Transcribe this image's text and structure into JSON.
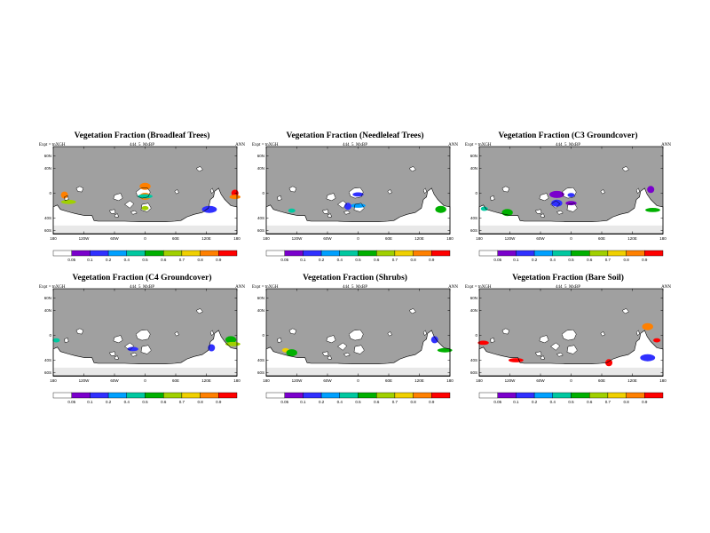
{
  "page": {
    "panels": [
      {
        "title": "Vegetation Fraction (Broadleaf Trees)",
        "expt_label": "Expt = tnXGH",
        "run_label": "444_5_MxBP",
        "season": "ANN"
      },
      {
        "title": "Vegetation Fraction (Needleleaf Trees)",
        "expt_label": "Expt = tnXGH",
        "run_label": "444_5_MxBP",
        "season": "ANN"
      },
      {
        "title": "Vegetation Fraction (C3 Groundcover)",
        "expt_label": "Expt = tnXGH",
        "run_label": "444_5_MxBP",
        "season": "ANN"
      },
      {
        "title": "Vegetation Fraction (C4 Groundcover)",
        "expt_label": "Expt = tnXGH",
        "run_label": "444_5_MxBP",
        "season": "ANN"
      },
      {
        "title": "Vegetation Fraction (Shrubs)",
        "expt_label": "Expt = tnXGH",
        "run_label": "444_5_MxBP",
        "season": "ANN"
      },
      {
        "title": "Vegetation Fraction (Bare Soil)",
        "expt_label": "Expt = tnXGH",
        "run_label": "444_5_MxBP",
        "season": "ANN"
      }
    ]
  },
  "chart_data": [
    {
      "type": "heatmap",
      "title": "Vegetation Fraction (Broadleaf Trees)",
      "x_tick_labels": [
        "180",
        "120W",
        "60W",
        "0",
        "60E",
        "120E",
        "180"
      ],
      "y_tick_labels": [
        "60N",
        "40N",
        "0",
        "40S",
        "60S"
      ],
      "colorbar_labels": [
        "0.05",
        "0.1",
        "0.2",
        "0.4",
        "0.5",
        "0.6",
        "0.7",
        "0.8",
        "0.9"
      ],
      "colorbar_colors": [
        "#ffffff",
        "#7a00cc",
        "#3030ff",
        "#00a0ff",
        "#00c8a0",
        "#00b000",
        "#a0d000",
        "#f0d000",
        "#ff8000",
        "#ff0000"
      ],
      "blobs": [
        {
          "lon": 0,
          "lat": -5,
          "level": 9
        },
        {
          "lon": 0,
          "lat": -5,
          "level": 8
        },
        {
          "lon": 0,
          "lat": -5,
          "level": 4
        },
        {
          "lon": 176,
          "lat": 0,
          "level": 9
        },
        {
          "lon": 176,
          "lat": -6,
          "level": 8
        },
        {
          "lon": 126,
          "lat": -26,
          "level": 2
        },
        {
          "lon": 0,
          "lat": -24,
          "level": 6
        },
        {
          "lon": 0,
          "lat": 11,
          "level": 8
        },
        {
          "lon": -150,
          "lat": -14,
          "level": 6
        },
        {
          "lon": -158,
          "lat": -3,
          "level": 8
        }
      ],
      "blob_values": [
        0.9,
        0.8,
        0.5,
        0.9,
        0.8,
        0.2,
        0.6,
        0.8,
        0.6,
        0.8
      ]
    },
    {
      "type": "heatmap",
      "title": "Vegetation Fraction (Needleleaf Trees)",
      "x_tick_labels": [
        "180",
        "120W",
        "60W",
        "0",
        "60E",
        "120E",
        "180"
      ],
      "y_tick_labels": [
        "60N",
        "40N",
        "0",
        "40S",
        "60S"
      ],
      "colorbar_labels": [
        "0.05",
        "0.1",
        "0.2",
        "0.4",
        "0.5",
        "0.6",
        "0.7",
        "0.8",
        "0.9"
      ],
      "colorbar_colors": [
        "#ffffff",
        "#7a00cc",
        "#3030ff",
        "#00a0ff",
        "#00c8a0",
        "#00b000",
        "#a0d000",
        "#f0d000",
        "#ff8000",
        "#ff0000"
      ],
      "blobs": [
        {
          "lon": -130,
          "lat": -28,
          "level": 4
        },
        {
          "lon": 162,
          "lat": -26,
          "level": 5
        },
        {
          "lon": 0,
          "lat": -20,
          "level": 3
        },
        {
          "lon": -20,
          "lat": -21,
          "level": 2
        },
        {
          "lon": 0,
          "lat": -2,
          "level": 2
        }
      ],
      "blob_values": [
        0.4,
        0.5,
        0.4,
        0.2,
        0.2
      ]
    },
    {
      "type": "heatmap",
      "title": "Vegetation Fraction (C3 Groundcover)",
      "x_tick_labels": [
        "180",
        "120W",
        "60W",
        "0",
        "60E",
        "120E",
        "180"
      ],
      "y_tick_labels": [
        "60N",
        "40N",
        "0",
        "40S",
        "60S"
      ],
      "colorbar_labels": [
        "0.05",
        "0.1",
        "0.2",
        "0.4",
        "0.5",
        "0.6",
        "0.7",
        "0.8",
        "0.9"
      ],
      "colorbar_colors": [
        "#ffffff",
        "#7a00cc",
        "#3030ff",
        "#00a0ff",
        "#00c8a0",
        "#00b000",
        "#a0d000",
        "#f0d000",
        "#ff8000",
        "#ff0000"
      ],
      "blobs": [
        {
          "lon": -170,
          "lat": -25,
          "level": 4
        },
        {
          "lon": -125,
          "lat": -31,
          "level": 5
        },
        {
          "lon": 160,
          "lat": -27,
          "level": 5
        },
        {
          "lon": 156,
          "lat": 6,
          "level": 1
        },
        {
          "lon": 0,
          "lat": -16,
          "level": 1
        },
        {
          "lon": -28,
          "lat": -2,
          "level": 1
        },
        {
          "lon": 0,
          "lat": -3,
          "level": 2
        },
        {
          "lon": -28,
          "lat": -16,
          "level": 2
        }
      ],
      "blob_values": [
        0.4,
        0.5,
        0.5,
        0.1,
        0.1,
        0.1,
        0.2,
        0.2
      ]
    },
    {
      "type": "heatmap",
      "title": "Vegetation Fraction (C4 Groundcover)",
      "x_tick_labels": [
        "180",
        "120W",
        "60W",
        "0",
        "60E",
        "120E",
        "180"
      ],
      "y_tick_labels": [
        "60N",
        "40N",
        "0",
        "40S",
        "60S"
      ],
      "colorbar_labels": [
        "0.05",
        "0.1",
        "0.2",
        "0.4",
        "0.5",
        "0.6",
        "0.7",
        "0.8",
        "0.9"
      ],
      "colorbar_colors": [
        "#ffffff",
        "#7a00cc",
        "#3030ff",
        "#00a0ff",
        "#00c8a0",
        "#00b000",
        "#a0d000",
        "#f0d000",
        "#ff8000",
        "#ff0000"
      ],
      "blobs": [
        {
          "lon": -174,
          "lat": -8,
          "level": 4
        },
        {
          "lon": 168,
          "lat": -7,
          "level": 5
        },
        {
          "lon": 172,
          "lat": -14,
          "level": 6
        },
        {
          "lon": 130,
          "lat": -20,
          "level": 2
        },
        {
          "lon": -24,
          "lat": -22,
          "level": 2
        }
      ],
      "blob_values": [
        0.4,
        0.5,
        0.6,
        0.2,
        0.2
      ]
    },
    {
      "type": "heatmap",
      "title": "Vegetation Fraction (Shrubs)",
      "x_tick_labels": [
        "180",
        "120W",
        "60W",
        "0",
        "60E",
        "120E",
        "180"
      ],
      "y_tick_labels": [
        "60N",
        "40N",
        "0",
        "40S",
        "60S"
      ],
      "colorbar_labels": [
        "0.05",
        "0.1",
        "0.2",
        "0.4",
        "0.5",
        "0.6",
        "0.7",
        "0.8",
        "0.9"
      ],
      "colorbar_colors": [
        "#ffffff",
        "#7a00cc",
        "#3030ff",
        "#00a0ff",
        "#00c8a0",
        "#00b000",
        "#a0d000",
        "#f0d000",
        "#ff8000",
        "#ff0000"
      ],
      "blobs": [
        {
          "lon": -142,
          "lat": -24,
          "level": 7
        },
        {
          "lon": -130,
          "lat": -28,
          "level": 5
        },
        {
          "lon": 170,
          "lat": -24,
          "level": 5
        },
        {
          "lon": 150,
          "lat": -7,
          "level": 2
        }
      ],
      "blob_values": [
        0.7,
        0.5,
        0.5,
        0.2
      ]
    },
    {
      "type": "heatmap",
      "title": "Vegetation Fraction (Bare Soil)",
      "x_tick_labels": [
        "180",
        "120W",
        "60W",
        "0",
        "60E",
        "120E",
        "180"
      ],
      "y_tick_labels": [
        "60N",
        "40N",
        "0",
        "40S",
        "60S"
      ],
      "colorbar_labels": [
        "0.05",
        "0.1",
        "0.2",
        "0.4",
        "0.5",
        "0.6",
        "0.7",
        "0.8",
        "0.9"
      ],
      "colorbar_colors": [
        "#ffffff",
        "#7a00cc",
        "#3030ff",
        "#00a0ff",
        "#00c8a0",
        "#00b000",
        "#a0d000",
        "#f0d000",
        "#ff8000",
        "#ff0000"
      ],
      "blobs": [
        {
          "lon": 168,
          "lat": -8,
          "level": 9
        },
        {
          "lon": 150,
          "lat": 14,
          "level": 8
        },
        {
          "lon": -108,
          "lat": -40,
          "level": 9
        },
        {
          "lon": 74,
          "lat": -44,
          "level": 9
        },
        {
          "lon": -172,
          "lat": -12,
          "level": 9
        },
        {
          "lon": 150,
          "lat": -36,
          "level": 2
        }
      ],
      "blob_values": [
        0.9,
        0.8,
        0.9,
        0.9,
        0.9,
        0.2
      ]
    }
  ]
}
